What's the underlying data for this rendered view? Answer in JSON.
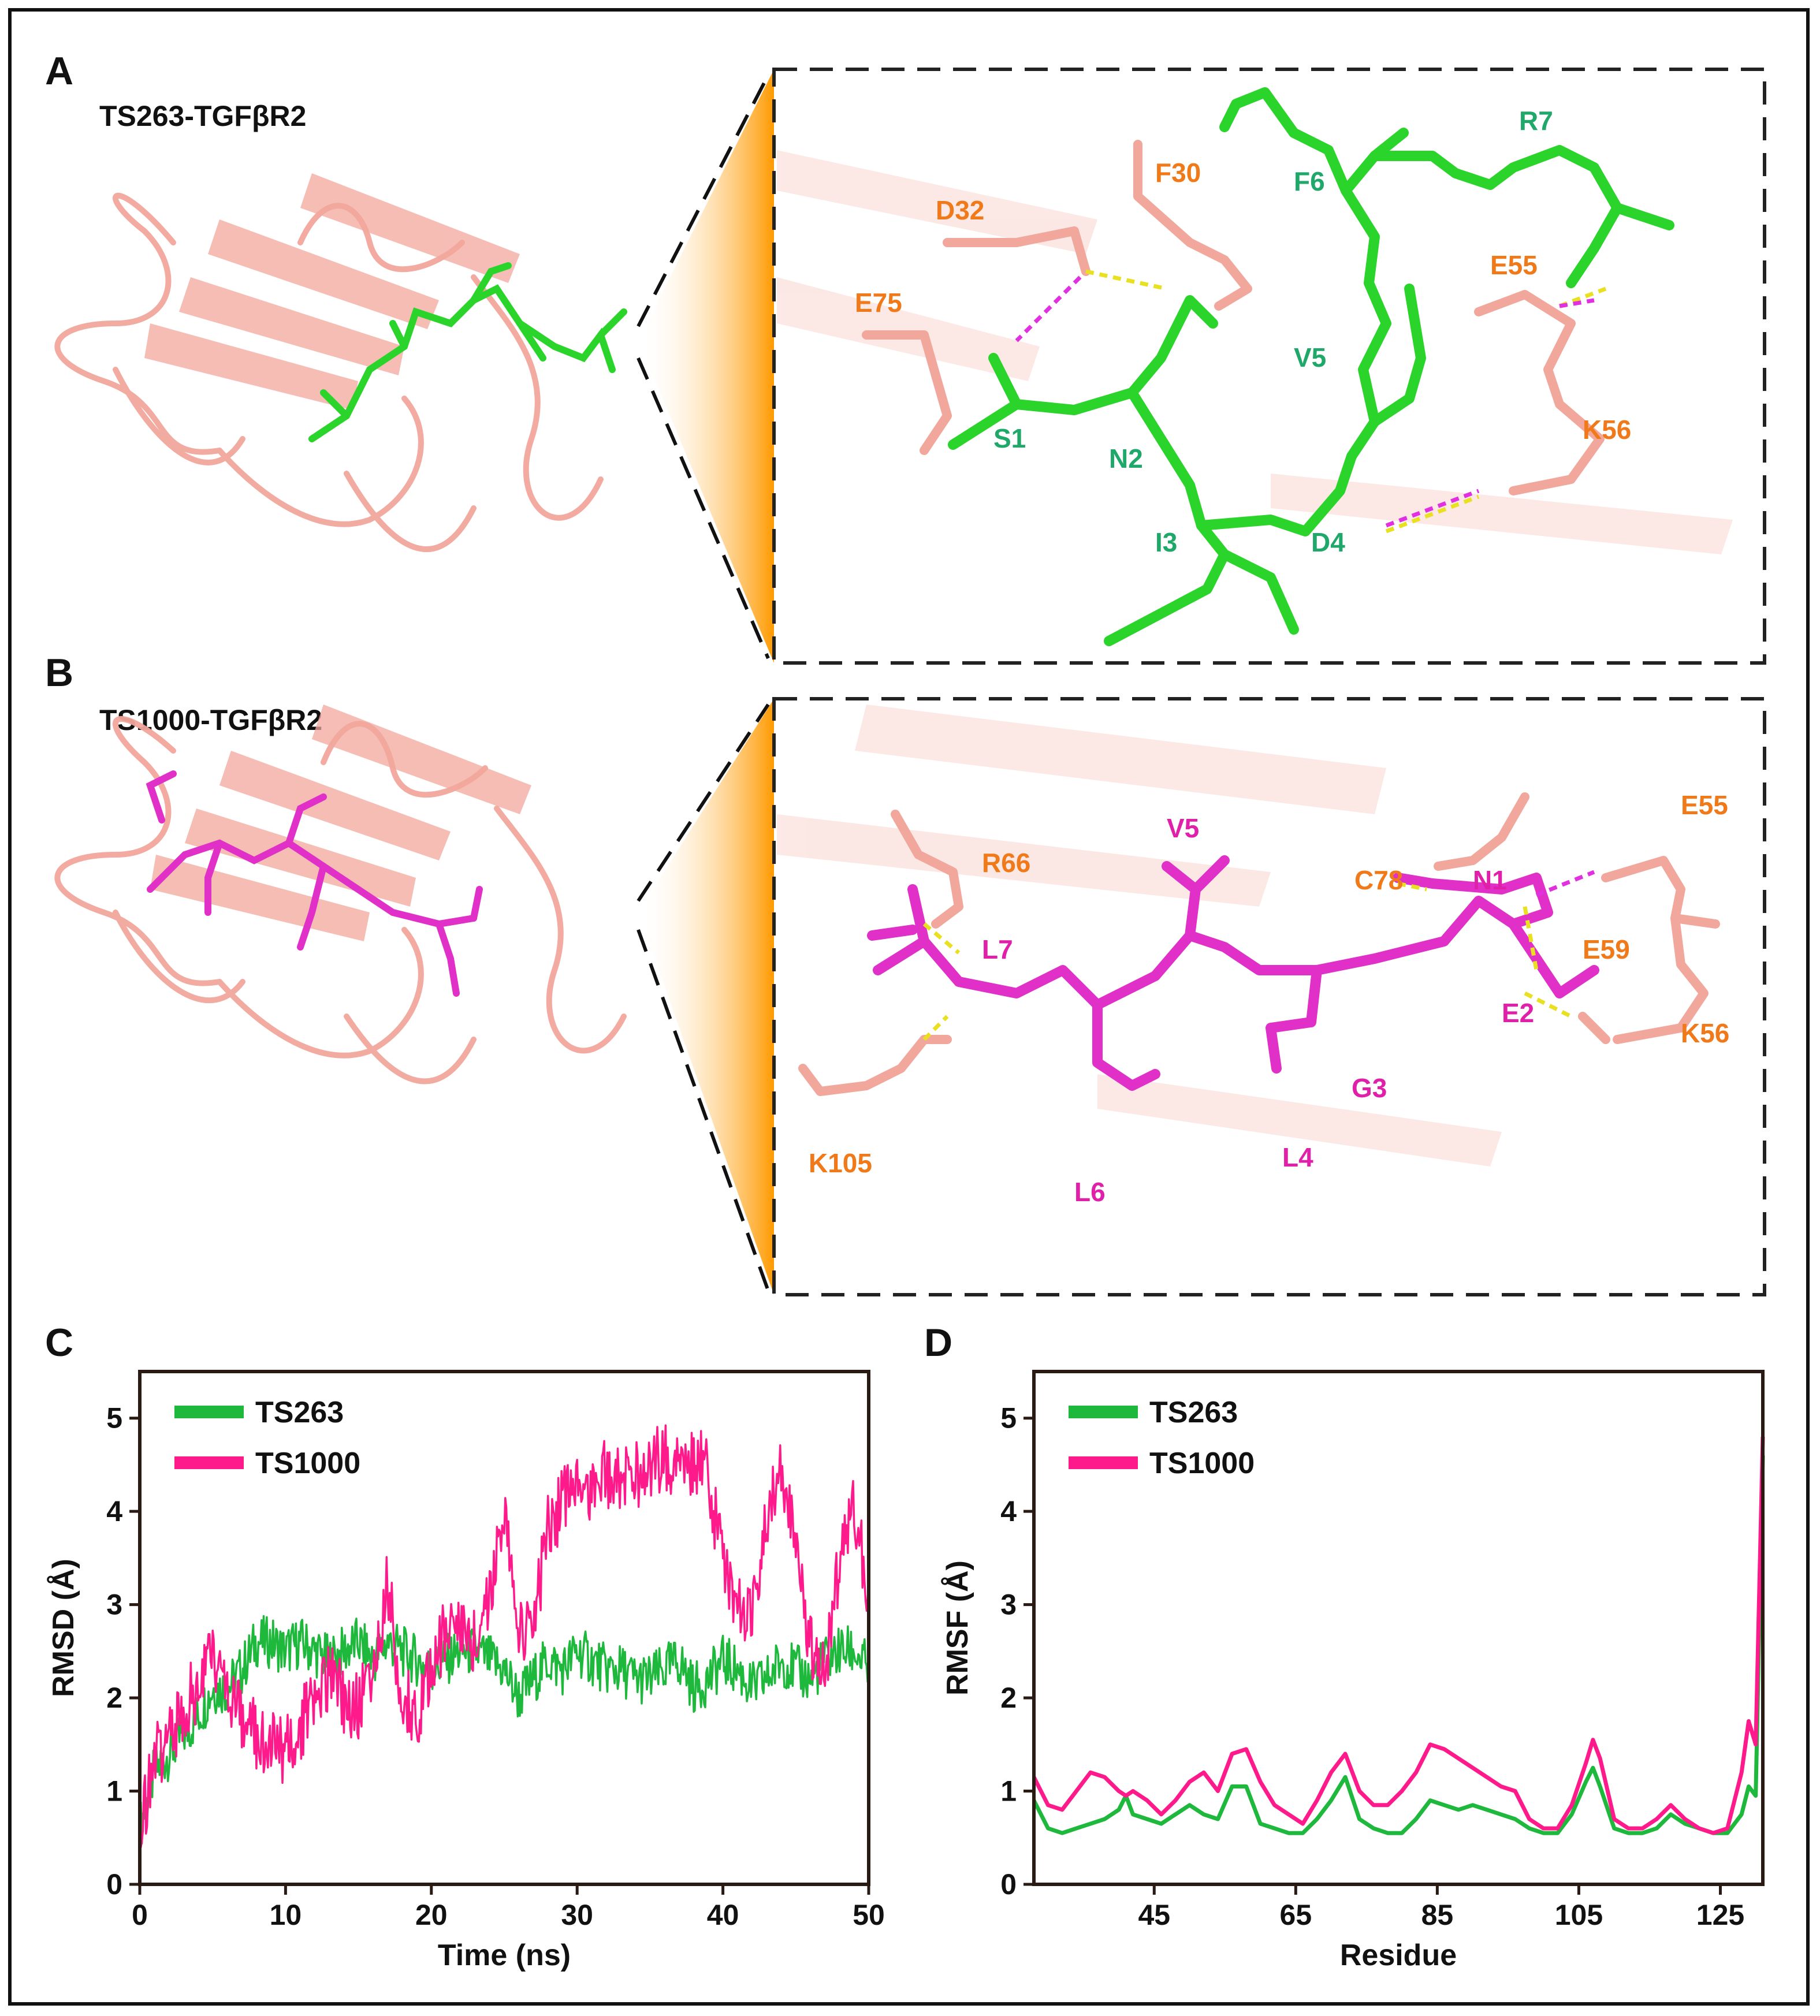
{
  "colors": {
    "ts263": "#1db83c",
    "ts1000": "#ff1a8c",
    "protein": "#f2a79c",
    "peptideA": "#2bd42b",
    "peptideB": "#e030c8",
    "proteinLabel": "#f07a1a",
    "peptideALabel": "#1fa86a",
    "peptideBLabel": "#e020a8",
    "hbondYellow": "#e8e020",
    "hbondMagenta": "#e030e0"
  },
  "panelA": {
    "letter": "A",
    "title": "TS263-TGFβR2",
    "protein_labels": [
      "F30",
      "D32",
      "E75",
      "E55",
      "K56"
    ],
    "peptide_labels": [
      "R7",
      "F6",
      "V5",
      "S1",
      "N2",
      "I3",
      "D4"
    ]
  },
  "panelB": {
    "letter": "B",
    "title": "TS1000-TGFβR2",
    "protein_labels": [
      "E55",
      "R66",
      "C78",
      "E59",
      "K56",
      "K105"
    ],
    "peptide_labels": [
      "V5",
      "N1",
      "L7",
      "E2",
      "G3",
      "L6",
      "L4"
    ]
  },
  "panelC": {
    "letter": "C"
  },
  "panelD": {
    "letter": "D"
  },
  "chart_data": [
    {
      "type": "line",
      "panel": "C",
      "xlabel": "Time (ns)",
      "ylabel": "RMSD (Å)",
      "xlim": [
        0,
        50
      ],
      "ylim": [
        0,
        5.5
      ],
      "xticks": [
        0,
        10,
        20,
        30,
        40,
        50
      ],
      "yticks": [
        0,
        1,
        2,
        3,
        4,
        5
      ],
      "legend": "top-left",
      "series": [
        {
          "name": "TS263",
          "x": [
            0,
            1,
            2,
            3,
            4,
            5,
            6,
            7,
            8,
            9,
            10,
            11,
            12,
            13,
            14,
            15,
            16,
            17,
            18,
            19,
            20,
            21,
            22,
            23,
            24,
            25,
            26,
            27,
            28,
            29,
            30,
            31,
            32,
            33,
            34,
            35,
            36,
            37,
            38,
            39,
            40,
            41,
            42,
            43,
            44,
            45,
            46,
            47,
            48,
            49,
            50
          ],
          "values": [
            0.6,
            1.2,
            1.4,
            1.6,
            1.8,
            2.1,
            2.1,
            2.3,
            2.6,
            2.6,
            2.5,
            2.6,
            2.5,
            2.4,
            2.5,
            2.6,
            2.4,
            2.6,
            2.5,
            2.4,
            2.3,
            2.4,
            2.5,
            2.5,
            2.4,
            2.3,
            2.0,
            2.2,
            2.4,
            2.3,
            2.5,
            2.4,
            2.3,
            2.3,
            2.2,
            2.2,
            2.3,
            2.4,
            2.1,
            2.2,
            2.4,
            2.3,
            2.1,
            2.2,
            2.4,
            2.3,
            2.2,
            2.4,
            2.5,
            2.5,
            2.3
          ]
        },
        {
          "name": "TS1000",
          "x": [
            0,
            1,
            2,
            3,
            4,
            5,
            6,
            7,
            8,
            9,
            10,
            11,
            12,
            13,
            14,
            15,
            16,
            17,
            18,
            19,
            20,
            21,
            22,
            23,
            24,
            25,
            26,
            27,
            28,
            29,
            30,
            31,
            32,
            33,
            34,
            35,
            36,
            37,
            38,
            39,
            40,
            41,
            42,
            43,
            44,
            45,
            46,
            47,
            48,
            49,
            50
          ],
          "values": [
            0.6,
            1.3,
            1.6,
            1.9,
            2.1,
            2.5,
            2.2,
            1.7,
            1.6,
            1.5,
            1.4,
            1.7,
            2.0,
            2.2,
            2.0,
            1.9,
            2.3,
            3.2,
            2.0,
            1.8,
            2.3,
            2.7,
            2.8,
            2.6,
            3.0,
            4.1,
            2.7,
            2.8,
            3.8,
            4.1,
            4.2,
            4.3,
            4.4,
            4.3,
            4.4,
            4.5,
            4.6,
            4.4,
            4.6,
            4.4,
            3.4,
            3.0,
            2.8,
            3.9,
            4.4,
            3.8,
            2.5,
            2.3,
            3.5,
            4.0,
            3.2
          ]
        }
      ]
    },
    {
      "type": "line",
      "panel": "D",
      "xlabel": "Residue",
      "ylabel": "RMSF (Å)",
      "xlim": [
        28,
        131
      ],
      "ylim": [
        0,
        5.5
      ],
      "xticks": [
        45,
        65,
        85,
        105,
        125
      ],
      "yticks": [
        0,
        1,
        2,
        3,
        4,
        5
      ],
      "legend": "top-left",
      "series": [
        {
          "name": "TS263",
          "x": [
            28,
            30,
            32,
            34,
            36,
            38,
            40,
            41,
            42,
            44,
            46,
            48,
            50,
            52,
            54,
            56,
            58,
            60,
            62,
            64,
            66,
            68,
            70,
            72,
            74,
            76,
            78,
            80,
            82,
            84,
            86,
            88,
            90,
            92,
            94,
            96,
            98,
            100,
            102,
            104,
            106,
            107,
            108,
            110,
            112,
            114,
            116,
            118,
            120,
            122,
            124,
            126,
            128,
            129,
            130,
            131
          ],
          "values": [
            0.9,
            0.6,
            0.55,
            0.6,
            0.65,
            0.7,
            0.8,
            0.95,
            0.75,
            0.7,
            0.65,
            0.75,
            0.85,
            0.75,
            0.7,
            1.05,
            1.05,
            0.65,
            0.6,
            0.55,
            0.55,
            0.7,
            0.9,
            1.15,
            0.7,
            0.6,
            0.55,
            0.55,
            0.7,
            0.9,
            0.85,
            0.8,
            0.85,
            0.8,
            0.75,
            0.7,
            0.6,
            0.55,
            0.55,
            0.75,
            1.1,
            1.25,
            1.05,
            0.6,
            0.55,
            0.55,
            0.6,
            0.75,
            0.65,
            0.6,
            0.55,
            0.55,
            0.75,
            1.05,
            0.95,
            4.6
          ]
        },
        {
          "name": "TS1000",
          "x": [
            28,
            30,
            32,
            34,
            36,
            38,
            40,
            41,
            42,
            44,
            46,
            48,
            50,
            52,
            54,
            56,
            58,
            60,
            62,
            64,
            66,
            68,
            70,
            72,
            74,
            76,
            78,
            80,
            82,
            84,
            86,
            88,
            90,
            92,
            94,
            96,
            98,
            100,
            102,
            104,
            106,
            107,
            108,
            110,
            112,
            114,
            116,
            118,
            120,
            122,
            124,
            126,
            128,
            129,
            130,
            131
          ],
          "values": [
            1.15,
            0.85,
            0.8,
            1.0,
            1.2,
            1.15,
            1.0,
            0.95,
            1.0,
            0.9,
            0.75,
            0.9,
            1.1,
            1.2,
            1.0,
            1.4,
            1.45,
            1.1,
            0.85,
            0.75,
            0.65,
            0.9,
            1.2,
            1.4,
            1.0,
            0.85,
            0.85,
            1.0,
            1.2,
            1.5,
            1.45,
            1.35,
            1.25,
            1.15,
            1.05,
            1.0,
            0.7,
            0.6,
            0.6,
            0.85,
            1.3,
            1.55,
            1.35,
            0.7,
            0.6,
            0.6,
            0.7,
            0.85,
            0.7,
            0.6,
            0.55,
            0.6,
            1.2,
            1.75,
            1.5,
            4.8
          ]
        }
      ]
    }
  ]
}
